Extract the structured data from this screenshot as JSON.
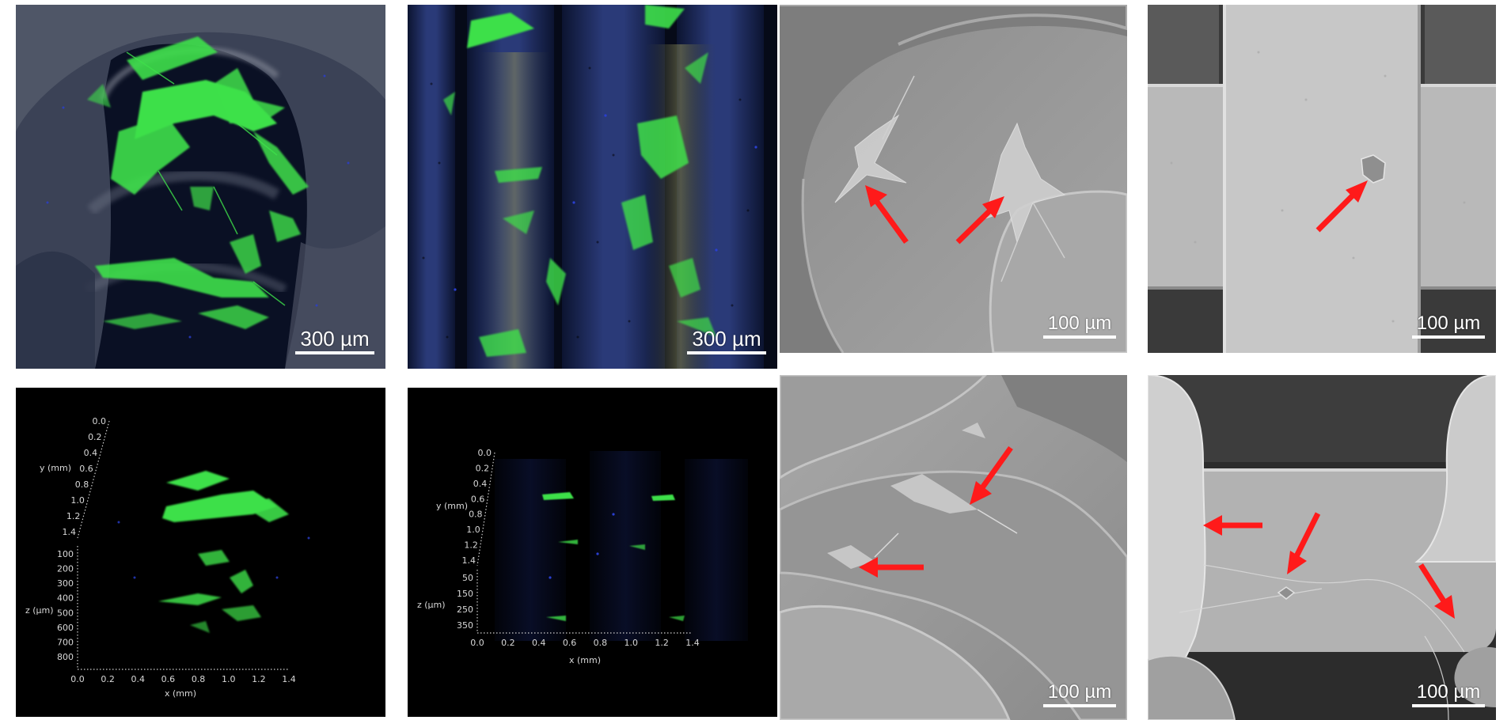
{
  "figure": {
    "panels": [
      {
        "id": "a1",
        "kind": "confocal-top-view",
        "scalebar": "300 µm"
      },
      {
        "id": "a2",
        "kind": "confocal-top-view",
        "scalebar": "300 µm"
      },
      {
        "id": "b1",
        "kind": "sem",
        "scalebar": "100 µm",
        "arrows": 2
      },
      {
        "id": "b2",
        "kind": "sem",
        "scalebar": "100 µm",
        "arrows": 1
      },
      {
        "id": "c1",
        "kind": "confocal-3d"
      },
      {
        "id": "c2",
        "kind": "confocal-3d"
      },
      {
        "id": "d1",
        "kind": "sem",
        "scalebar": "100 µm",
        "arrows": 2
      },
      {
        "id": "d2",
        "kind": "sem",
        "scalebar": "100 µm",
        "arrows": 3
      }
    ],
    "plot3d_1": {
      "y_label": "y (mm)",
      "y_ticks": [
        "0.0",
        "0.2",
        "0.4",
        "0.6",
        "0.8",
        "1.0",
        "1.2",
        "1.4"
      ],
      "z_label": "z (µm)",
      "z_ticks": [
        "100",
        "200",
        "300",
        "400",
        "500",
        "600",
        "700",
        "800"
      ],
      "x_label": "x (mm)",
      "x_ticks": [
        "0.0",
        "0.2",
        "0.4",
        "0.6",
        "0.8",
        "1.0",
        "1.2",
        "1.4"
      ]
    },
    "plot3d_2": {
      "y_label": "y (mm)",
      "y_ticks": [
        "0.0",
        "0.2",
        "0.4",
        "0.6",
        "0.8",
        "1.0",
        "1.2",
        "1.4"
      ],
      "z_label": "z (µm)",
      "z_ticks": [
        "50",
        "150",
        "250",
        "350"
      ],
      "x_label": "x (mm)",
      "x_ticks": [
        "0.0",
        "0.2",
        "0.4",
        "0.6",
        "0.8",
        "1.0",
        "1.2",
        "1.4"
      ]
    },
    "colors": {
      "cell_stain": "#3ee04a",
      "nuclei_stain": "#2a3fd0",
      "arrow": "#ff1a1a",
      "sem_gray": "#9a9a9a"
    }
  }
}
